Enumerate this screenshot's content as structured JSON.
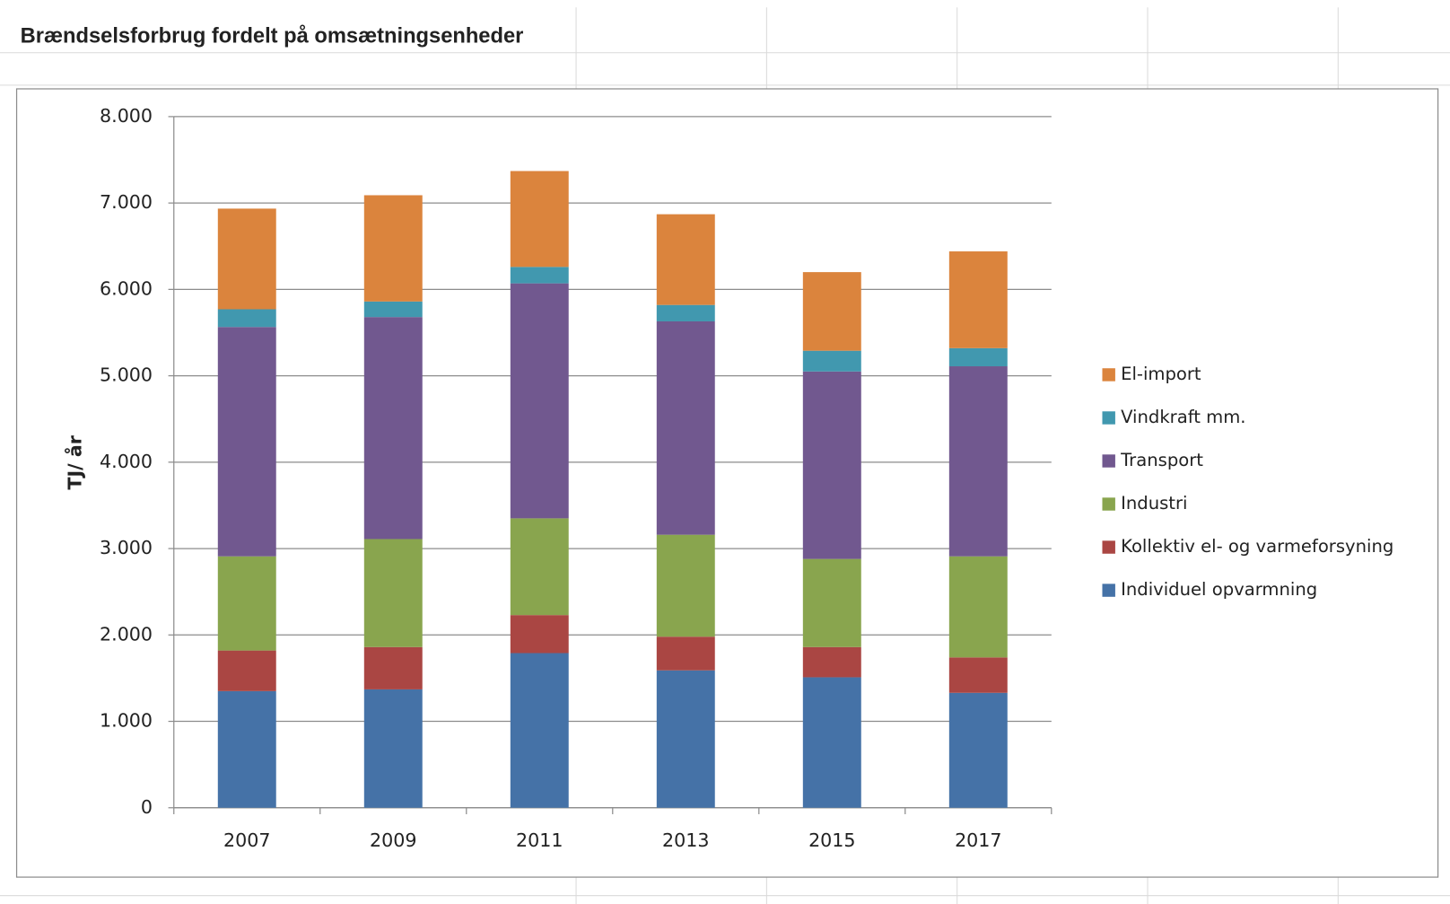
{
  "chart_data": {
    "type": "stacked_bar",
    "title": "Brændselsforbrug fordelt på omsætningsenheder",
    "ylabel": "TJ/ år",
    "categories": [
      "2007",
      "2009",
      "2011",
      "2013",
      "2015",
      "2017"
    ],
    "series": [
      {
        "name": "Individuel opvarmning",
        "color": "#4572a7",
        "values": [
          1350,
          1370,
          1790,
          1590,
          1510,
          1330
        ]
      },
      {
        "name": "Kollektiv el- og varmeforsyning",
        "color": "#aa4643",
        "values": [
          470,
          490,
          440,
          390,
          350,
          410
        ]
      },
      {
        "name": "Industri",
        "color": "#89a54e",
        "values": [
          1090,
          1250,
          1120,
          1180,
          1020,
          1170
        ]
      },
      {
        "name": "Transport",
        "color": "#71588f",
        "values": [
          2655,
          2570,
          2720,
          2470,
          2170,
          2200
        ]
      },
      {
        "name": "Vindkraft mm.",
        "color": "#4198af",
        "values": [
          205,
          180,
          190,
          190,
          240,
          210
        ]
      },
      {
        "name": "El-import",
        "color": "#db843d",
        "values": [
          1165,
          1230,
          1110,
          1050,
          910,
          1120
        ]
      }
    ],
    "ylim": [
      0,
      8000
    ],
    "yticks": [
      0,
      {
        "value": 1000,
        "label": "1.000"
      },
      {
        "value": 2000,
        "label": "2.000"
      },
      {
        "value": 3000,
        "label": "3.000"
      },
      {
        "value": 4000,
        "label": "4.000"
      },
      {
        "value": 5000,
        "label": "5.000"
      },
      {
        "value": 6000,
        "label": "6.000"
      },
      {
        "value": 7000,
        "label": "7.000"
      },
      {
        "value": 8000,
        "label": "8.000"
      }
    ],
    "grid": true,
    "legend": "right"
  }
}
